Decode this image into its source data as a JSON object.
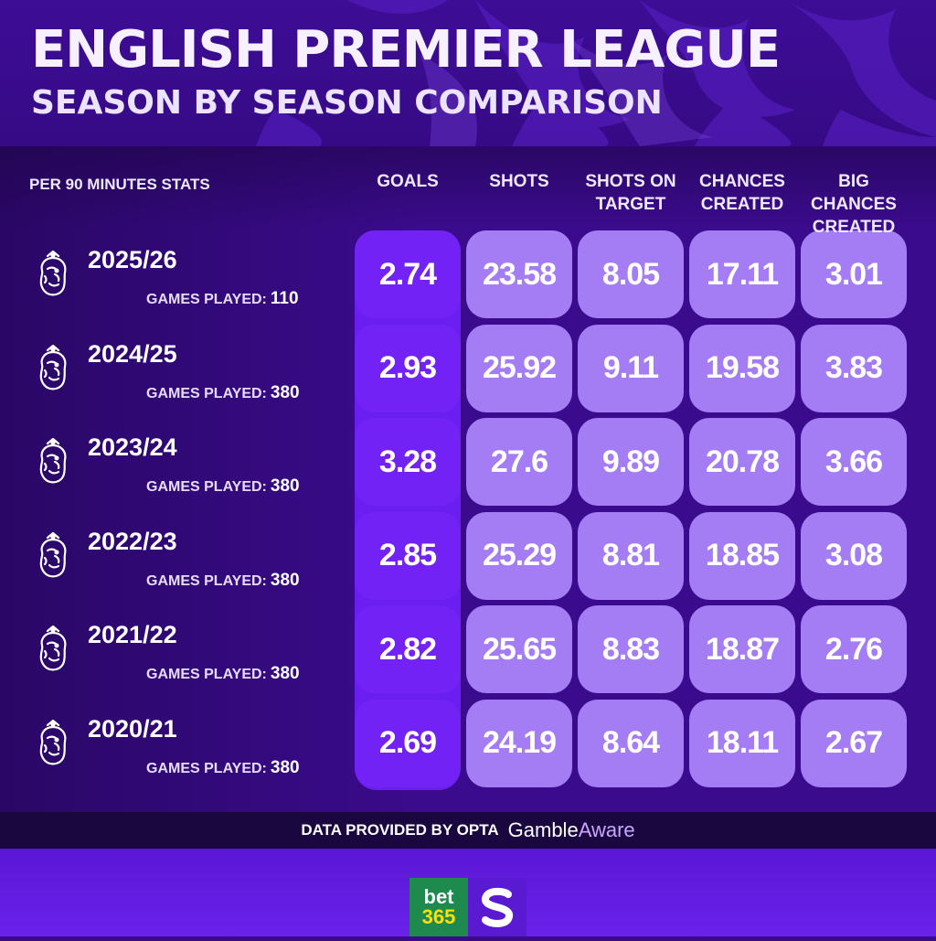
{
  "header": {
    "title": "ENGLISH PREMIER LEAGUE",
    "subtitle": "SEASON BY SEASON COMPARISON"
  },
  "table": {
    "stats_label": "PER 90 MINUTES STATS",
    "columns": [
      "GOALS",
      "SHOTS",
      "SHOTS ON\nTARGET",
      "CHANCES\nCREATED",
      "BIG CHANCES\nCREATED"
    ],
    "games_label": "GAMES PLAYED:",
    "rows": [
      {
        "season": "2025/26",
        "games": "110",
        "values": [
          "2.74",
          "23.58",
          "8.05",
          "17.11",
          "3.01"
        ]
      },
      {
        "season": "2024/25",
        "games": "380",
        "values": [
          "2.93",
          "25.92",
          "9.11",
          "19.58",
          "3.83"
        ]
      },
      {
        "season": "2023/24",
        "games": "380",
        "values": [
          "3.28",
          "27.6",
          "9.89",
          "20.78",
          "3.66"
        ]
      },
      {
        "season": "2022/23",
        "games": "380",
        "values": [
          "2.85",
          "25.29",
          "8.81",
          "18.85",
          "3.08"
        ]
      },
      {
        "season": "2021/22",
        "games": "380",
        "values": [
          "2.82",
          "25.65",
          "8.83",
          "18.87",
          "2.76"
        ]
      },
      {
        "season": "2020/21",
        "games": "380",
        "values": [
          "2.69",
          "24.19",
          "8.64",
          "18.11",
          "2.67"
        ]
      }
    ]
  },
  "footer": {
    "source": "DATA PROVIDED BY OPTA",
    "gamble_part1": "Gamble",
    "gamble_part2": "Aware"
  },
  "logos": {
    "bet365_line1": "bet",
    "bet365_line2": "365"
  },
  "icons": {
    "row_icon": "premier-league-lion-icon",
    "brand_icon": "s-brand-icon"
  },
  "colors": {
    "background": "#3a0a8a",
    "goals_highlight": "#7322f5",
    "cell": "#a47df5",
    "footer_bar": "#1a0740",
    "bet365_green": "#1e8a4e"
  }
}
